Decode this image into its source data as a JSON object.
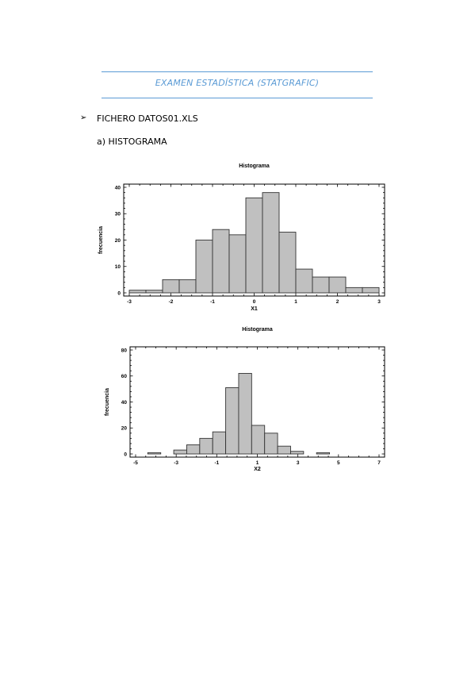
{
  "document": {
    "title": "EXAMEN ESTADÍSTICA (STATGRAFIC)",
    "file_heading": "FICHERO DATOS01.XLS",
    "bullet_glyph": "➢",
    "section_heading": "a)  HISTOGRAMA",
    "accent_color": "#5b9bd5"
  },
  "chart_data": [
    {
      "type": "bar",
      "subtype": "histogram",
      "title": "Histograma",
      "xlabel": "X1",
      "ylabel": "frecuencia",
      "xlim": [
        -3,
        3
      ],
      "ylim": [
        0,
        40
      ],
      "xticks": [
        -3,
        -2,
        -1,
        0,
        1,
        2,
        3
      ],
      "yticks": [
        0,
        10,
        20,
        30,
        40
      ],
      "bin_edges": [
        -3.0,
        -2.6,
        -2.2,
        -1.8,
        -1.4,
        -1.0,
        -0.6,
        -0.2,
        0.2,
        0.6,
        1.0,
        1.4,
        1.8,
        2.2,
        2.6,
        3.0
      ],
      "values": [
        1,
        1,
        5,
        5,
        20,
        24,
        22,
        36,
        38,
        23,
        9,
        6,
        6,
        2,
        2
      ],
      "bar_color": "#c0c0c0",
      "grid": false
    },
    {
      "type": "bar",
      "subtype": "histogram",
      "title": "Histograma",
      "xlabel": "X2",
      "ylabel": "frecuencia",
      "xlim": [
        -5,
        7
      ],
      "ylim": [
        0,
        80
      ],
      "xticks": [
        -5,
        -3,
        -1,
        1,
        3,
        5,
        7
      ],
      "yticks": [
        0,
        20,
        40,
        60,
        80
      ],
      "bin_edges": [
        -4.4,
        -3.76,
        -3.12,
        -2.48,
        -1.84,
        -1.2,
        -0.56,
        0.08,
        0.72,
        1.36,
        2.0,
        2.64,
        3.28,
        3.92,
        4.56,
        5.2
      ],
      "values": [
        1,
        0,
        3,
        7,
        12,
        17,
        51,
        62,
        22,
        16,
        6,
        2,
        0,
        1,
        0
      ],
      "bar_color": "#c0c0c0",
      "grid": false
    }
  ]
}
